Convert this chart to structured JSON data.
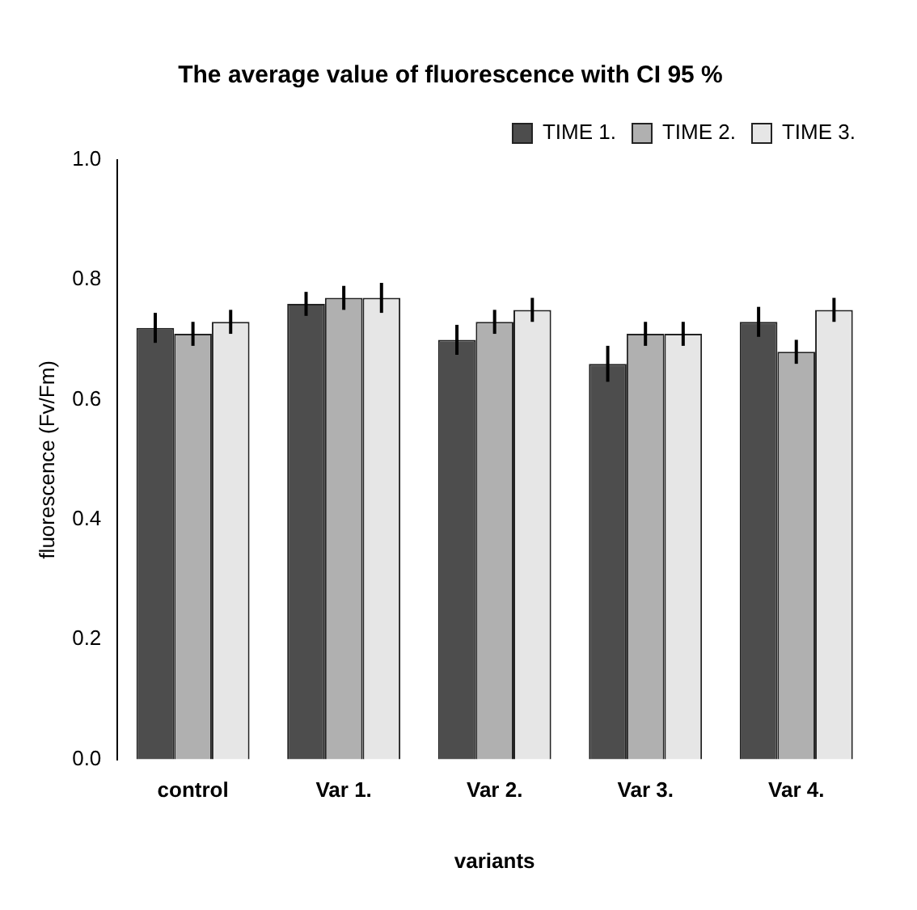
{
  "chart_data": {
    "type": "bar",
    "title": "The average value of fluorescence with CI 95 %",
    "xlabel": "variants",
    "ylabel": "fluorescence (Fv/Fm)",
    "categories": [
      "control",
      "Var 1.",
      "Var 2.",
      "Var 3.",
      "Var 4."
    ],
    "series": [
      {
        "name": "TIME 1.",
        "color": "#4d4d4d",
        "values": [
          0.72,
          0.76,
          0.7,
          0.66,
          0.73
        ],
        "errors": [
          0.025,
          0.02,
          0.025,
          0.03,
          0.025
        ]
      },
      {
        "name": "TIME 2.",
        "color": "#b0b0b0",
        "values": [
          0.71,
          0.77,
          0.73,
          0.71,
          0.68
        ],
        "errors": [
          0.02,
          0.02,
          0.02,
          0.02,
          0.02
        ]
      },
      {
        "name": "TIME 3.",
        "color": "#e6e6e6",
        "values": [
          0.73,
          0.77,
          0.75,
          0.71,
          0.75
        ],
        "errors": [
          0.02,
          0.025,
          0.02,
          0.02,
          0.02
        ]
      }
    ],
    "ylim": [
      0,
      1
    ],
    "yticks": [
      {
        "value": 0,
        "label": "0.0"
      },
      {
        "value": 0.2,
        "label": "0.2"
      },
      {
        "value": 0.4,
        "label": "0.4"
      },
      {
        "value": 0.6,
        "label": "0.6"
      },
      {
        "value": 0.8,
        "label": "0.8"
      },
      {
        "value": 1,
        "label": "1.0"
      }
    ],
    "grid": false,
    "legend": "top right"
  }
}
